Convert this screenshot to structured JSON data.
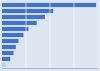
{
  "chart_data": {
    "type": "bar",
    "orientation": "horizontal",
    "values": [
      285,
      155,
      130,
      105,
      80,
      65,
      50,
      42,
      35,
      25,
      12
    ],
    "colors": [
      "#4472c4",
      "#4472c4",
      "#4472c4",
      "#4472c4",
      "#4472c4",
      "#4472c4",
      "#4472c4",
      "#4472c4",
      "#4472c4",
      "#4472c4",
      "#b8cce4"
    ],
    "xlim": [
      0,
      290.7
    ],
    "xticks": [
      72.675,
      145.35,
      218.025,
      290.7
    ],
    "grid": true,
    "tick_labels": false
  }
}
